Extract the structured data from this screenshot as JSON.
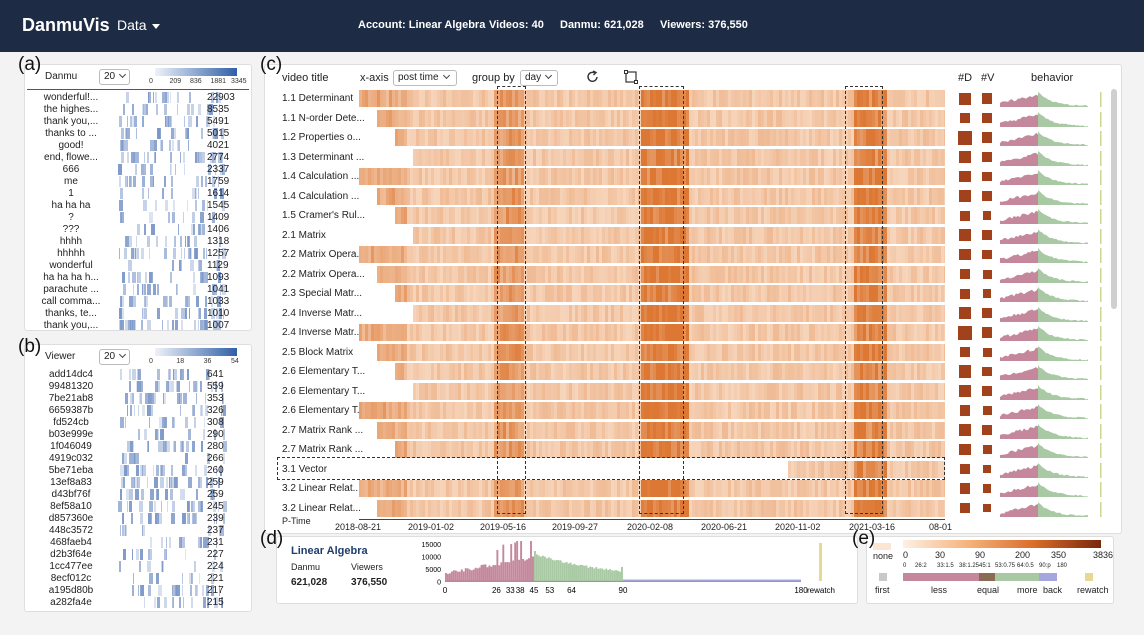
{
  "header": {
    "brand": "DanmuVis",
    "data_menu": "Data",
    "account": "Account: Linear Algebra",
    "videos": "Videos: 40",
    "danmu": "Danmu: 621,028",
    "viewers": "Viewers: 376,550"
  },
  "panel_labels": {
    "a": "(a)",
    "b": "(b)",
    "c": "(c)",
    "d": "(d)",
    "e": "(e)"
  },
  "danmu_panel": {
    "title": "Danmu",
    "select": "20",
    "legend_ticks": [
      "0",
      "209",
      "836",
      "1881",
      "3345"
    ],
    "rows": [
      {
        "text": "wonderful!...",
        "count": "22903"
      },
      {
        "text": "the highes...",
        "count": "8535"
      },
      {
        "text": "thank you,...",
        "count": "5491"
      },
      {
        "text": "thanks to ...",
        "count": "5015"
      },
      {
        "text": "good!",
        "count": "4021"
      },
      {
        "text": "end, flowe...",
        "count": "2774"
      },
      {
        "text": "666",
        "count": "2337"
      },
      {
        "text": "me",
        "count": "1759"
      },
      {
        "text": "1",
        "count": "1614"
      },
      {
        "text": "ha ha ha",
        "count": "1545"
      },
      {
        "text": "?",
        "count": "1409"
      },
      {
        "text": "???",
        "count": "1406"
      },
      {
        "text": "hhhh",
        "count": "1318"
      },
      {
        "text": "hhhhh",
        "count": "1257"
      },
      {
        "text": "wonderful",
        "count": "1129"
      },
      {
        "text": "ha ha ha h...",
        "count": "1093"
      },
      {
        "text": "parachute ...",
        "count": "1041"
      },
      {
        "text": "call comma...",
        "count": "1033"
      },
      {
        "text": "thanks, te...",
        "count": "1010"
      },
      {
        "text": "thank you,...",
        "count": "1007"
      }
    ]
  },
  "viewer_panel": {
    "title": "Viewer",
    "select": "20",
    "legend_ticks": [
      "0",
      "18",
      "36",
      "54"
    ],
    "rows": [
      {
        "text": "add14dc4",
        "count": "641"
      },
      {
        "text": "99481320",
        "count": "559"
      },
      {
        "text": "7be21ab8",
        "count": "353"
      },
      {
        "text": "6659387b",
        "count": "326"
      },
      {
        "text": "fd524cb",
        "count": "308"
      },
      {
        "text": "b03e999e",
        "count": "290"
      },
      {
        "text": "1f046049",
        "count": "280"
      },
      {
        "text": "4919c032",
        "count": "266"
      },
      {
        "text": "5be71eba",
        "count": "260"
      },
      {
        "text": "13ef8a83",
        "count": "259"
      },
      {
        "text": "d43bf76f",
        "count": "259"
      },
      {
        "text": "8ef58a10",
        "count": "245"
      },
      {
        "text": "d857360e",
        "count": "239"
      },
      {
        "text": "448c3572",
        "count": "237"
      },
      {
        "text": "468faeb4",
        "count": "231"
      },
      {
        "text": "d2b3f64e",
        "count": "227"
      },
      {
        "text": "1cc477ee",
        "count": "224"
      },
      {
        "text": "8ecf012c",
        "count": "221"
      },
      {
        "text": "a195d80b",
        "count": "217"
      },
      {
        "text": "a282fa4e",
        "count": "215"
      }
    ]
  },
  "main_panel": {
    "video_title_header": "video title",
    "xaxis_label": "x-axis",
    "xaxis_value": "post time",
    "groupby_label": "group by",
    "groupby_value": "day",
    "col_d": "#D",
    "col_v": "#V",
    "col_behavior": "behavior",
    "p_time": "P-Time",
    "x_ticks": [
      "2018-08-21",
      "2019-01-02",
      "2019-05-16",
      "2019-09-27",
      "2020-02-08",
      "2020-06-21",
      "2020-11-02",
      "2021-03-16",
      "08-01"
    ],
    "videos": [
      {
        "title": "1.1 Determinant",
        "d": 0.75,
        "v": 0.7
      },
      {
        "title": "1.1 N-order Dete...",
        "d": 0.6,
        "v": 0.55
      },
      {
        "title": "1.2 Properties o...",
        "d": 1.0,
        "v": 0.7
      },
      {
        "title": "1.3 Determinant ...",
        "d": 0.85,
        "v": 0.7
      },
      {
        "title": "1.4 Calculation ...",
        "d": 0.7,
        "v": 0.6
      },
      {
        "title": "1.4 Calculation ...",
        "d": 0.65,
        "v": 0.55
      },
      {
        "title": "1.5 Cramer's Rul...",
        "d": 0.5,
        "v": 0.45
      },
      {
        "title": "2.1 Matrix",
        "d": 0.65,
        "v": 0.55
      },
      {
        "title": "2.2 Matrix Opera...",
        "d": 0.7,
        "v": 0.6
      },
      {
        "title": "2.2 Matrix Opera...",
        "d": 0.6,
        "v": 0.5
      },
      {
        "title": "2.3 Special Matr...",
        "d": 0.5,
        "v": 0.45
      },
      {
        "title": "2.4 Inverse Matr...",
        "d": 0.85,
        "v": 0.65
      },
      {
        "title": "2.4 Inverse Matr...",
        "d": 1.0,
        "v": 0.7
      },
      {
        "title": "2.5 Block Matrix",
        "d": 0.6,
        "v": 0.5
      },
      {
        "title": "2.6 Elementary T...",
        "d": 0.8,
        "v": 0.6
      },
      {
        "title": "2.6 Elementary T...",
        "d": 0.7,
        "v": 0.55
      },
      {
        "title": "2.6 Elementary T...",
        "d": 0.6,
        "v": 0.5
      },
      {
        "title": "2.7 Matrix Rank ...",
        "d": 0.7,
        "v": 0.55
      },
      {
        "title": "2.7 Matrix Rank ...",
        "d": 0.65,
        "v": 0.5
      },
      {
        "title": "3.1 Vector",
        "d": 0.45,
        "v": 0.4
      },
      {
        "title": "3.2 Linear Relat...",
        "d": 0.55,
        "v": 0.45
      },
      {
        "title": "3.2 Linear Relat...",
        "d": 0.5,
        "v": 0.45
      }
    ]
  },
  "detail_panel": {
    "title": "Linear Algebra",
    "danmu_label": "Danmu",
    "viewers_label": "Viewers",
    "danmu_value": "621,028",
    "viewers_value": "376,550",
    "y_ticks": [
      "15000",
      "10000",
      "5000",
      "0"
    ],
    "x_ticks": [
      "0",
      "26",
      "33",
      "38",
      "45",
      "53",
      "64",
      "90",
      "180"
    ],
    "rewatch": "rewatch"
  },
  "color_legend": {
    "none": "none",
    "ticks": [
      "0",
      "30",
      "90",
      "200",
      "350",
      "3836"
    ],
    "behavior_ticks": [
      "0",
      "26:2",
      "33:1.5",
      "38:1.25",
      "45:1",
      "53:0.75",
      "64:0.5",
      "90:p",
      "180"
    ],
    "labels": [
      "first",
      "less",
      "equal",
      "more",
      "back",
      "rewatch"
    ]
  },
  "colors": {
    "header_bg": "#1d2b45",
    "heat_low": "#fbe6d4",
    "heat_high": "#e0823e",
    "square": "#a1421c",
    "less": "#c4879c",
    "more": "#a9c9a4",
    "equal": "#8a6b54",
    "back": "#a6a6de",
    "rewatch": "#e7d98f"
  }
}
